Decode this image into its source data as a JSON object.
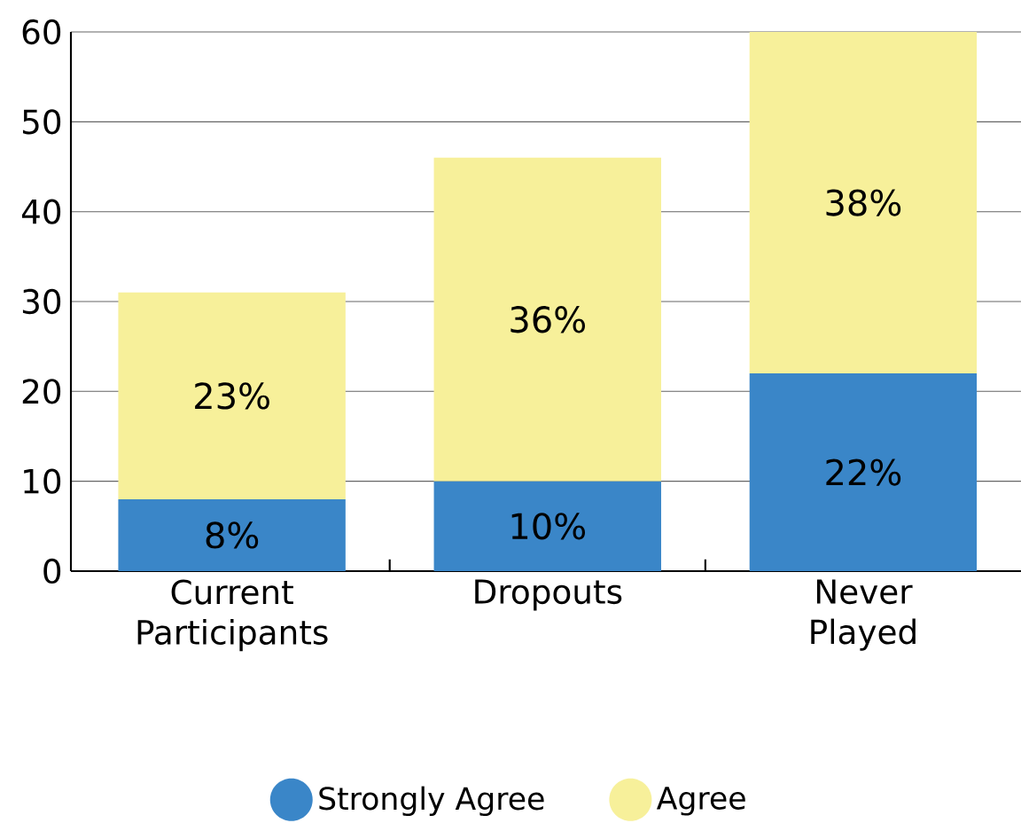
{
  "chart_data": {
    "type": "bar",
    "stacked": true,
    "categories": [
      "Current Participants",
      "Dropouts",
      "Never Played"
    ],
    "series": [
      {
        "name": "Strongly Agree",
        "color": "#3a86c8",
        "values": [
          8,
          10,
          22
        ],
        "value_labels": [
          "8%",
          "10%",
          "22%"
        ]
      },
      {
        "name": "Agree",
        "color": "#f7f09a",
        "values": [
          23,
          36,
          38
        ],
        "value_labels": [
          "23%",
          "36%",
          "38%"
        ]
      }
    ],
    "ylim": [
      0,
      60
    ],
    "yticks": [
      0,
      10,
      20,
      30,
      40,
      50,
      60
    ],
    "grid": "y",
    "legend": "bottom"
  }
}
